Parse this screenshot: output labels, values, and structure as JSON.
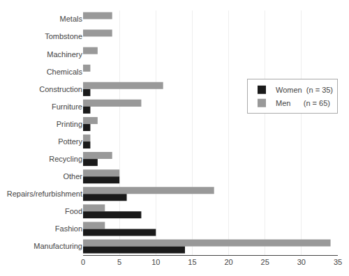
{
  "chart_data": {
    "type": "bar",
    "orientation": "horizontal",
    "categories": [
      "Metals",
      "Tombstone",
      "Machinery",
      "Chemicals",
      "Construction",
      "Furniture",
      "Printing",
      "Pottery",
      "Recycling",
      "Other",
      "Repairs/refurbishment",
      "Food",
      "Fashion",
      "Manufacturing"
    ],
    "series": [
      {
        "name": "Women  (n = 35)",
        "color": "#1a1a1a",
        "values": [
          0,
          0,
          0,
          0,
          1,
          1,
          1,
          1,
          2,
          5,
          6,
          8,
          10,
          14
        ]
      },
      {
        "name": "Men      (n = 65)",
        "color": "#999999",
        "values": [
          4,
          4,
          2,
          1,
          11,
          8,
          2,
          1,
          4,
          5,
          18,
          3,
          3,
          34
        ]
      }
    ],
    "xlim": [
      0,
      35
    ],
    "xticks": [
      0,
      5,
      10,
      15,
      20,
      25,
      30,
      35
    ],
    "grid": true,
    "legend": "upper right"
  }
}
